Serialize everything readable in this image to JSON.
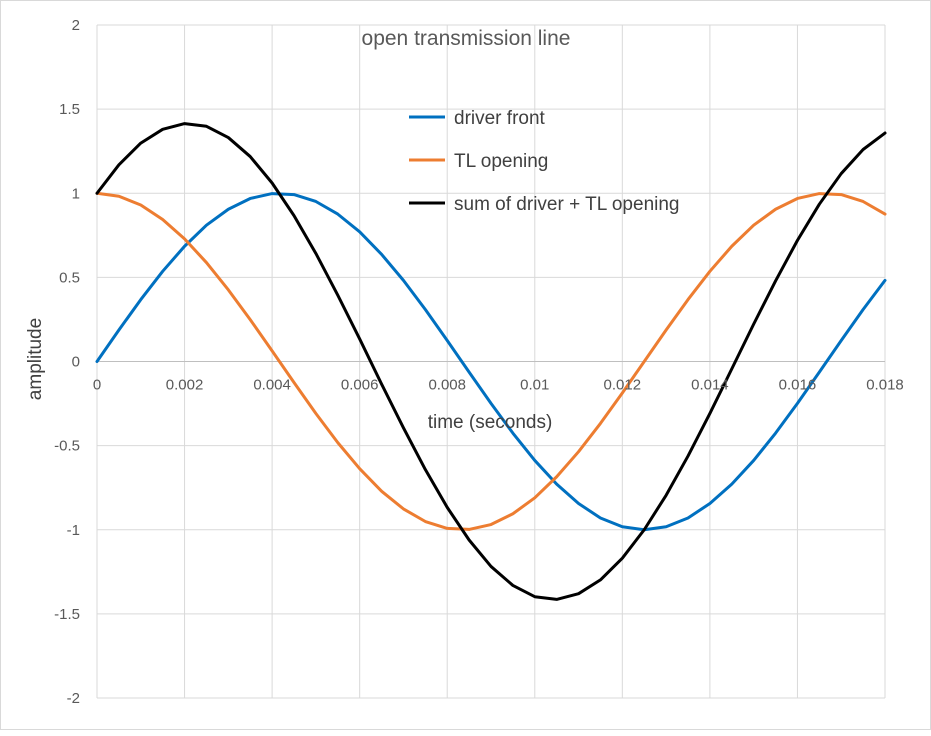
{
  "chart_data": {
    "type": "line",
    "title": "open transmission line",
    "xlabel": "time (seconds)",
    "ylabel": "amplitude",
    "xlim": [
      0,
      0.018
    ],
    "ylim": [
      -2,
      2
    ],
    "x_ticks": [
      0,
      0.002,
      0.004,
      0.006,
      0.008,
      0.01,
      0.012,
      0.014,
      0.016,
      0.018
    ],
    "x_tick_labels": [
      "0",
      "0.002",
      "0.004",
      "0.006",
      "0.008",
      "0.01",
      "0.012",
      "0.014",
      "0.016",
      "0.018"
    ],
    "y_ticks": [
      2,
      1.5,
      1,
      0.5,
      0,
      -0.5,
      -1,
      -1.5,
      -2
    ],
    "y_tick_labels": [
      "2",
      "1.5",
      "1",
      "0.5",
      "0",
      "-0.5",
      "-1",
      "-1.5",
      "-2"
    ],
    "grid": true,
    "legend_position": "top-center",
    "x": [
      0,
      0.0005,
      0.001,
      0.0015,
      0.002,
      0.0025,
      0.003,
      0.0035,
      0.004,
      0.0045,
      0.005,
      0.0055,
      0.006,
      0.0065,
      0.007,
      0.0075,
      0.008,
      0.0085,
      0.009,
      0.0095,
      0.01,
      0.0105,
      0.011,
      0.0115,
      0.012,
      0.0125,
      0.013,
      0.0135,
      0.014,
      0.0145,
      0.015,
      0.0155,
      0.016,
      0.0165,
      0.017,
      0.0175,
      0.018
    ],
    "series": [
      {
        "name": "driver front",
        "color": "#0070c0",
        "values": [
          0,
          0.187,
          0.368,
          0.536,
          0.685,
          0.81,
          0.905,
          0.969,
          0.998,
          0.992,
          0.951,
          0.876,
          0.771,
          0.637,
          0.482,
          0.309,
          0.125,
          -0.063,
          -0.249,
          -0.426,
          -0.588,
          -0.729,
          -0.844,
          -0.93,
          -0.982,
          -1.0,
          -0.982,
          -0.93,
          -0.844,
          -0.729,
          -0.588,
          -0.426,
          -0.249,
          -0.063,
          0.125,
          0.309,
          0.482
        ]
      },
      {
        "name": "TL opening",
        "color": "#ed7d31",
        "values": [
          1,
          0.982,
          0.93,
          0.844,
          0.729,
          0.588,
          0.426,
          0.249,
          0.063,
          -0.125,
          -0.309,
          -0.482,
          -0.637,
          -0.771,
          -0.876,
          -0.951,
          -0.992,
          -0.998,
          -0.969,
          -0.905,
          -0.81,
          -0.685,
          -0.536,
          -0.368,
          -0.187,
          0,
          0.187,
          0.368,
          0.536,
          0.685,
          0.81,
          0.905,
          0.969,
          0.998,
          0.992,
          0.951,
          0.876
        ]
      },
      {
        "name": "sum of driver + TL opening",
        "color": "#000000",
        "values": [
          1,
          1.169,
          1.298,
          1.38,
          1.414,
          1.398,
          1.331,
          1.218,
          1.061,
          0.867,
          0.642,
          0.394,
          0.134,
          -0.134,
          -0.394,
          -0.642,
          -0.867,
          -1.061,
          -1.218,
          -1.331,
          -1.398,
          -1.414,
          -1.38,
          -1.298,
          -1.169,
          -1.0,
          -0.795,
          -0.562,
          -0.309,
          -0.044,
          0.222,
          0.479,
          0.72,
          0.935,
          1.117,
          1.26,
          1.358
        ]
      }
    ]
  }
}
